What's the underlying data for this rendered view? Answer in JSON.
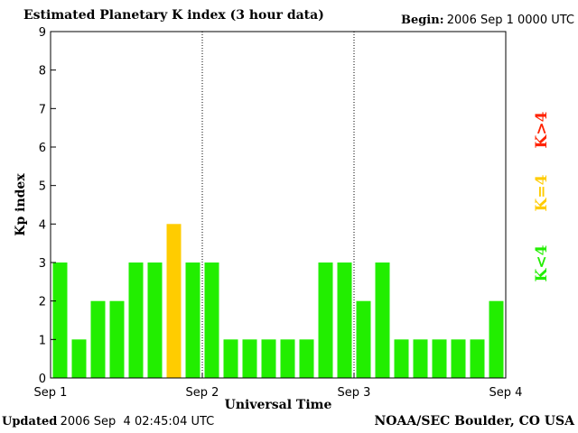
{
  "header": {
    "title": "Estimated Planetary K index (3 hour data)",
    "begin_label": "Begin:",
    "begin_value": "2006 Sep 1 0000 UTC"
  },
  "footer": {
    "updated_label": "Updated",
    "updated_value": "2006 Sep  4 02:45:04 UTC",
    "credit": "NOAA/SEC Boulder, CO USA"
  },
  "chart_data": {
    "type": "bar",
    "title": "Estimated Planetary K index (3 hour data)",
    "xlabel": "Universal Time",
    "ylabel": "Kp index",
    "ylim": [
      0,
      9
    ],
    "yticks": [
      0,
      1,
      2,
      3,
      4,
      5,
      6,
      7,
      8,
      9
    ],
    "xticks": [
      "Sep 1",
      "Sep 2",
      "Sep 3",
      "Sep 4"
    ],
    "values": [
      3,
      1,
      2,
      2,
      3,
      3,
      4,
      3,
      3,
      1,
      1,
      1,
      1,
      1,
      3,
      3,
      2,
      3,
      1,
      1,
      1,
      1,
      1,
      2
    ],
    "legend": [
      "K<4",
      "K=4",
      "K>4"
    ],
    "legend_placement": "right",
    "colors": {
      "low": "#22ee00",
      "equal": "#ffcc00",
      "high": "#ff2200"
    },
    "day_separators": true,
    "grid": false
  }
}
